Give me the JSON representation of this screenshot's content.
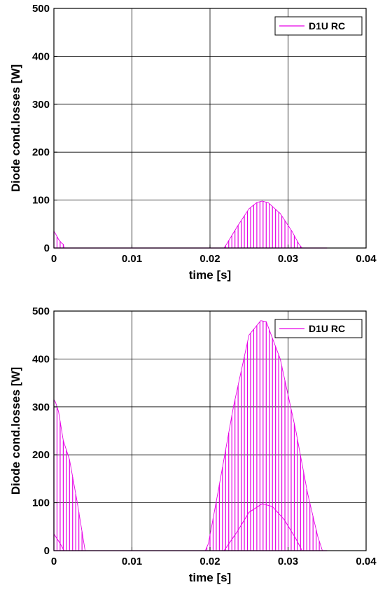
{
  "colors": {
    "series": "#e600e6",
    "grid": "#000000",
    "background": "#ffffff"
  },
  "chart_data": [
    {
      "type": "line",
      "title": "",
      "xlabel": "time [s]",
      "ylabel": "Diode cond.losses [W]",
      "xlim": [
        0,
        0.04
      ],
      "ylim": [
        0,
        500
      ],
      "xticks": [
        0,
        0.01,
        0.02,
        0.03,
        0.04
      ],
      "xtick_labels": [
        "0",
        "0.01",
        "0.02",
        "0.03",
        "0.04"
      ],
      "yticks": [
        0,
        100,
        200,
        300,
        400,
        500
      ],
      "ytick_labels": [
        "0",
        "100",
        "200",
        "300",
        "400",
        "500"
      ],
      "grid": true,
      "legend": {
        "position": "top-right",
        "entries": [
          "D1U RC"
        ]
      },
      "series": [
        {
          "name": "D1U RC",
          "pulsed": true,
          "pulse_period": 0.0004,
          "envelope": {
            "x": [
              0,
              0.0002,
              0.0006,
              0.001,
              0.0012,
              0.0013,
              0.0218,
              0.0222,
              0.0235,
              0.025,
              0.026,
              0.0267,
              0.0275,
              0.029,
              0.0305,
              0.0314,
              0.0318,
              0.035
            ],
            "y": [
              35,
              30,
              18,
              10,
              8,
              0,
              0,
              10,
              45,
              82,
              95,
              98,
              94,
              72,
              35,
              8,
              0,
              0
            ]
          }
        }
      ]
    },
    {
      "type": "line",
      "title": "",
      "xlabel": "time [s]",
      "ylabel": "Diode cond.losses [W]",
      "xlim": [
        0,
        0.04
      ],
      "ylim": [
        0,
        500
      ],
      "xticks": [
        0,
        0.01,
        0.02,
        0.03,
        0.04
      ],
      "xtick_labels": [
        "0",
        "0.01",
        "0.02",
        "0.03",
        "0.04"
      ],
      "yticks": [
        0,
        100,
        200,
        300,
        400,
        500
      ],
      "ytick_labels": [
        "0",
        "100",
        "200",
        "300",
        "400",
        "500"
      ],
      "grid": true,
      "legend": {
        "position": "top-right",
        "entries": [
          "D1U RC"
        ]
      },
      "series": [
        {
          "name": "D1U RC",
          "pulsed": true,
          "pulse_period": 0.0004,
          "envelope": {
            "x": [
              0,
              0.0002,
              0.0006,
              0.0012,
              0.002,
              0.003,
              0.0038,
              0.004,
              0.0194,
              0.0198,
              0.021,
              0.023,
              0.025,
              0.0265,
              0.0272,
              0.029,
              0.031,
              0.0325,
              0.0338,
              0.0344,
              0.035
            ],
            "y": [
              315,
              310,
              290,
              230,
              190,
              100,
              20,
              0,
              0,
              15,
              120,
              300,
              450,
              480,
              478,
              400,
              250,
              120,
              30,
              0,
              0
            ]
          },
          "baseline": {
            "x": [
              0,
              0.0008,
              0.0013,
              0.0218,
              0.0235,
              0.025,
              0.0267,
              0.028,
              0.0295,
              0.031,
              0.0318,
              0.035
            ],
            "y": [
              35,
              15,
              0,
              0,
              40,
              80,
              98,
              92,
              65,
              25,
              0,
              0
            ]
          }
        }
      ]
    }
  ]
}
